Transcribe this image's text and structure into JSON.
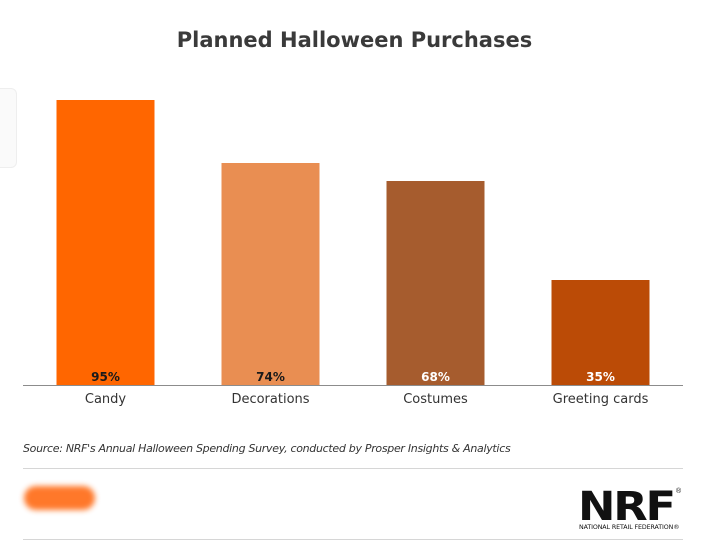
{
  "chart_data": {
    "type": "bar",
    "title": "Planned Halloween Purchases",
    "categories": [
      "Candy",
      "Decorations",
      "Costumes",
      "Greeting cards"
    ],
    "values": [
      95,
      74,
      68,
      35
    ],
    "value_labels": [
      "95%",
      "74%",
      "68%",
      "35%"
    ],
    "colors": [
      "#ff6600",
      "#e98e52",
      "#a65c2e",
      "#bb4b06"
    ],
    "label_colors": [
      "#1a1a1a",
      "#1a1a1a",
      "#ffffff",
      "#ffffff"
    ],
    "ylim": [
      0,
      100
    ],
    "grid": false,
    "legend": "none"
  },
  "source": "Source: NRF's Annual Halloween Spending Survey, conducted by Prosper Insights & Analytics",
  "logo": {
    "mark": "NRF",
    "registered": "®",
    "subtitle": "NATIONAL RETAIL FEDERATION",
    "subtitle_reg": "®"
  }
}
